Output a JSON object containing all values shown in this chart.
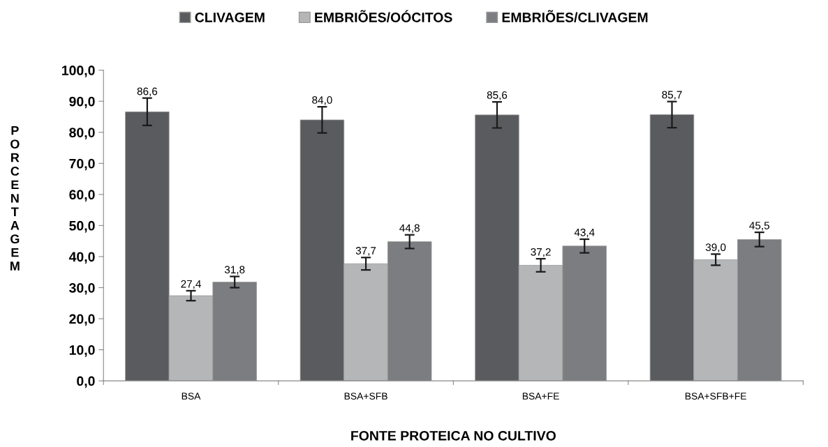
{
  "chart_data": {
    "type": "bar",
    "xlabel": "FONTE PROTEICA NO CULTIVO",
    "ylabel": "PORCENTAGEM",
    "categories": [
      "BSA",
      "BSA+SFB",
      "BSA+FE",
      "BSA+SFB+FE"
    ],
    "series": [
      {
        "name": "CLIVAGEM",
        "color": "#5a5b5e",
        "values": [
          86.6,
          84.0,
          85.6,
          85.7
        ],
        "errors": [
          4.4,
          4.2,
          4.2,
          4.2
        ],
        "value_labels": [
          "86,6",
          "84,0",
          "85,6",
          "85,7"
        ]
      },
      {
        "name": "EMBRIÕES/OÓCITOS",
        "color": "#b5b6b8",
        "values": [
          27.4,
          37.7,
          37.2,
          39.0
        ],
        "errors": [
          1.6,
          2.0,
          2.1,
          1.8
        ],
        "value_labels": [
          "27,4",
          "37,7",
          "37,2",
          "39,0"
        ]
      },
      {
        "name": "EMBRIÕES/CLIVAGEM",
        "color": "#7c7d80",
        "values": [
          31.8,
          44.8,
          43.4,
          45.5
        ],
        "errors": [
          1.8,
          2.2,
          2.2,
          2.3
        ],
        "value_labels": [
          "31,8",
          "44,8",
          "43,4",
          "45,5"
        ]
      }
    ],
    "ylim": [
      0,
      100
    ],
    "yticks": [
      {
        "value": 0,
        "label": "0,0"
      },
      {
        "value": 10,
        "label": "10,0"
      },
      {
        "value": 20,
        "label": "20,0"
      },
      {
        "value": 30,
        "label": "30,0"
      },
      {
        "value": 40,
        "label": "40,0"
      },
      {
        "value": 50,
        "label": "50,0"
      },
      {
        "value": 60,
        "label": "60,0"
      },
      {
        "value": 70,
        "label": "70,0"
      },
      {
        "value": 80,
        "label": "80,0"
      },
      {
        "value": 90,
        "label": "90,0"
      },
      {
        "value": 100,
        "label": "100,0"
      }
    ],
    "grid": false,
    "legend": "top"
  }
}
